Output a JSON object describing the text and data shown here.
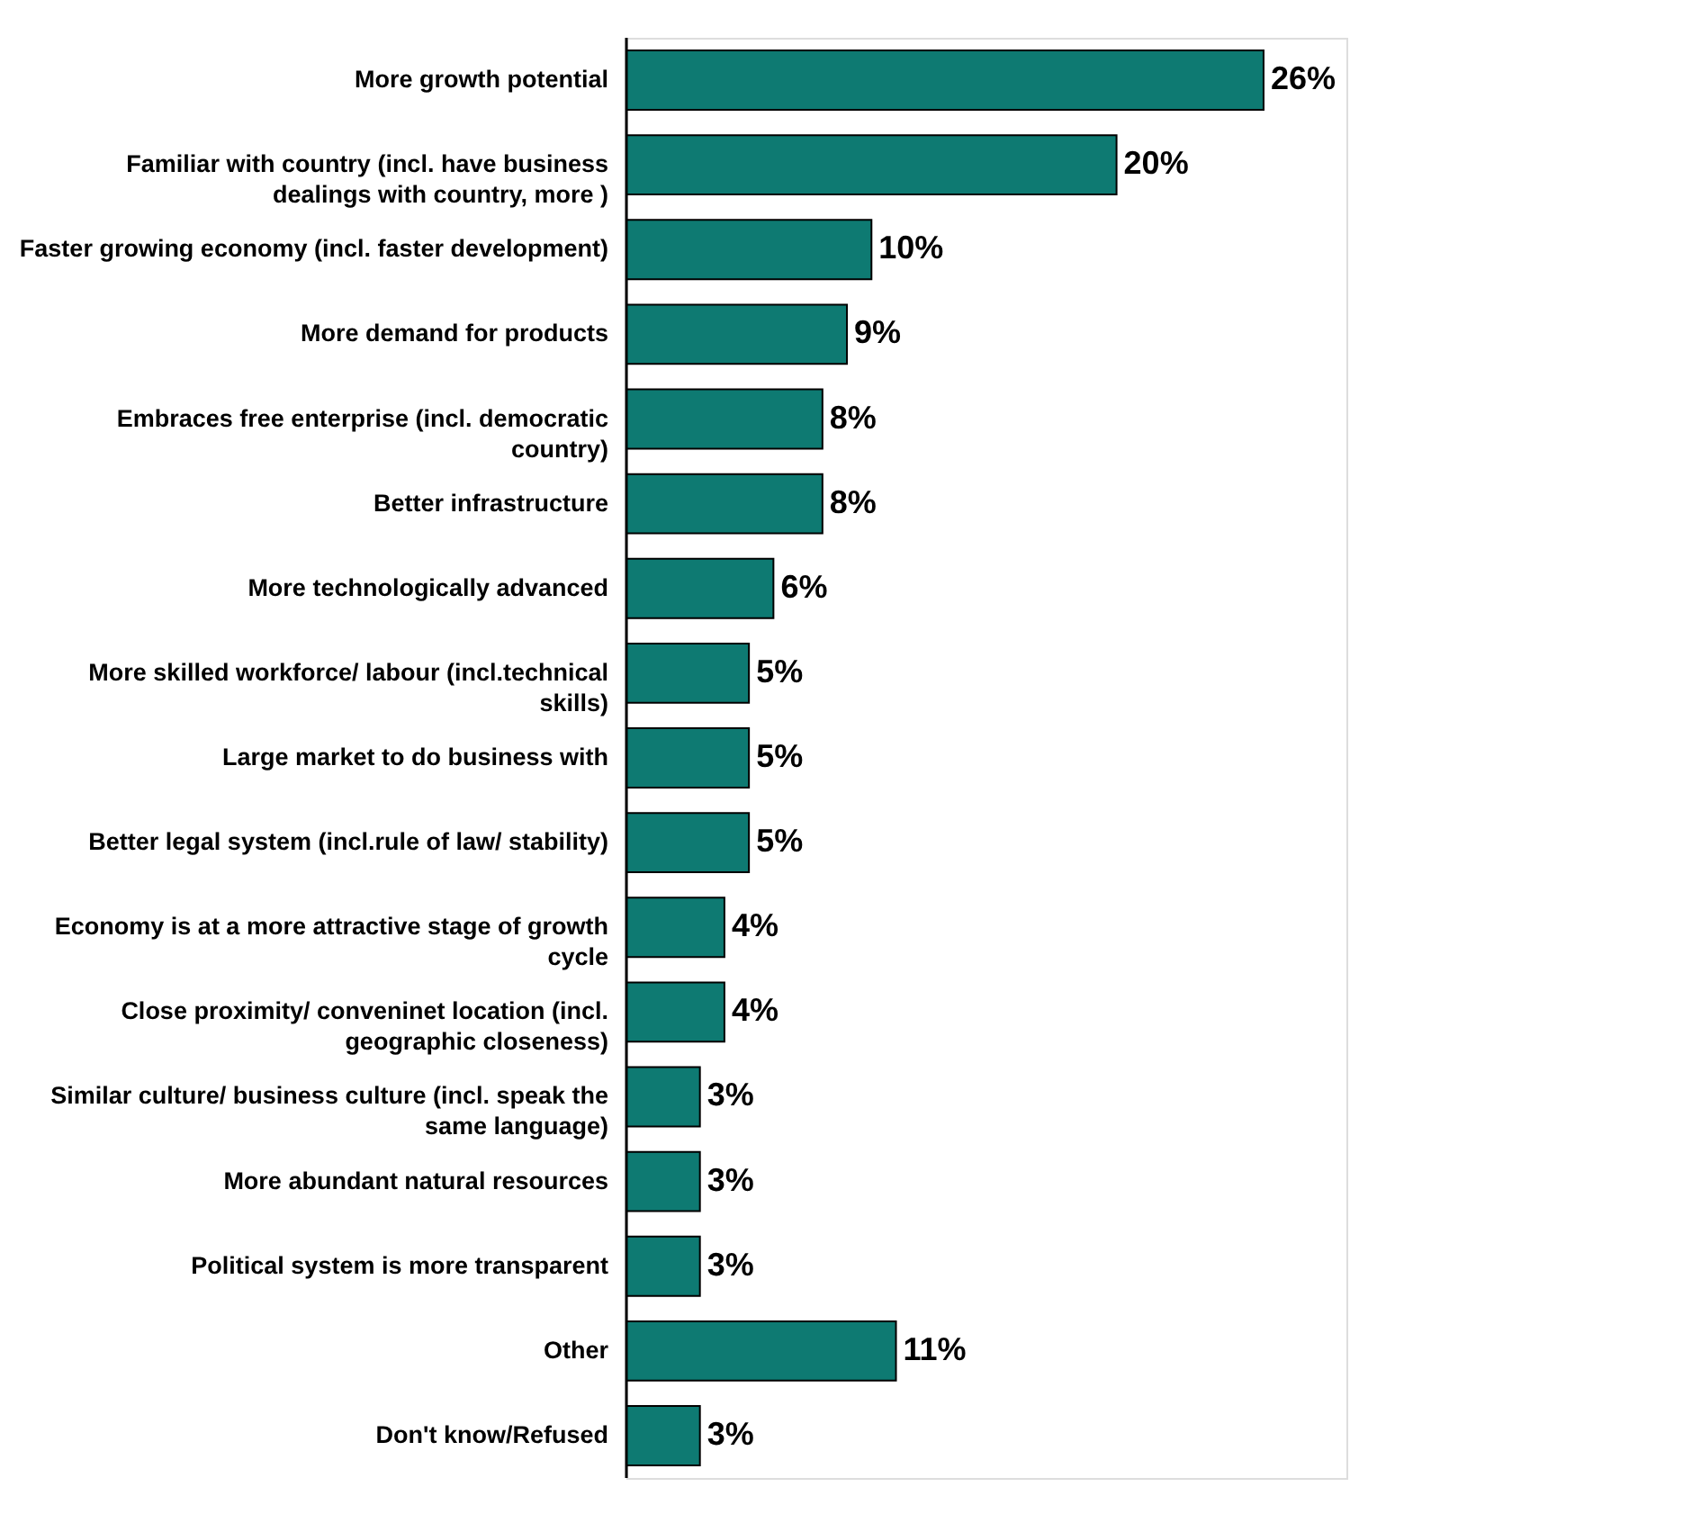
{
  "chart_data": {
    "type": "bar",
    "orientation": "horizontal",
    "color": "#0e7a72",
    "categories": [
      "More growth potential",
      "Familiar with country (incl. have business dealings with country, more )",
      "Faster growing economy (incl. faster development)",
      "More demand for products",
      "Embraces free enterprise (incl. democratic country)",
      "Better infrastructure",
      "More technologically advanced",
      "More skilled workforce/ labour (incl.technical skills)",
      "Large market to do business with",
      "Better legal system (incl.rule of law/ stability)",
      "Economy is at a more attractive stage of growth cycle",
      "Close proximity/ conveninet location (incl. geographic closeness)",
      "Similar culture/ business culture (incl. speak the same language)",
      "More abundant natural resources",
      "Political system is more transparent",
      "Other",
      "Don't know/Refused"
    ],
    "values": [
      26,
      20,
      10,
      9,
      8,
      8,
      6,
      5,
      5,
      5,
      4,
      4,
      3,
      3,
      3,
      11,
      3
    ],
    "value_labels": [
      "26%",
      "20%",
      "10%",
      "9%",
      "8%",
      "8%",
      "6%",
      "5%",
      "5%",
      "5%",
      "4%",
      "4%",
      "3%",
      "3%",
      "3%",
      "11%",
      "3%"
    ]
  }
}
